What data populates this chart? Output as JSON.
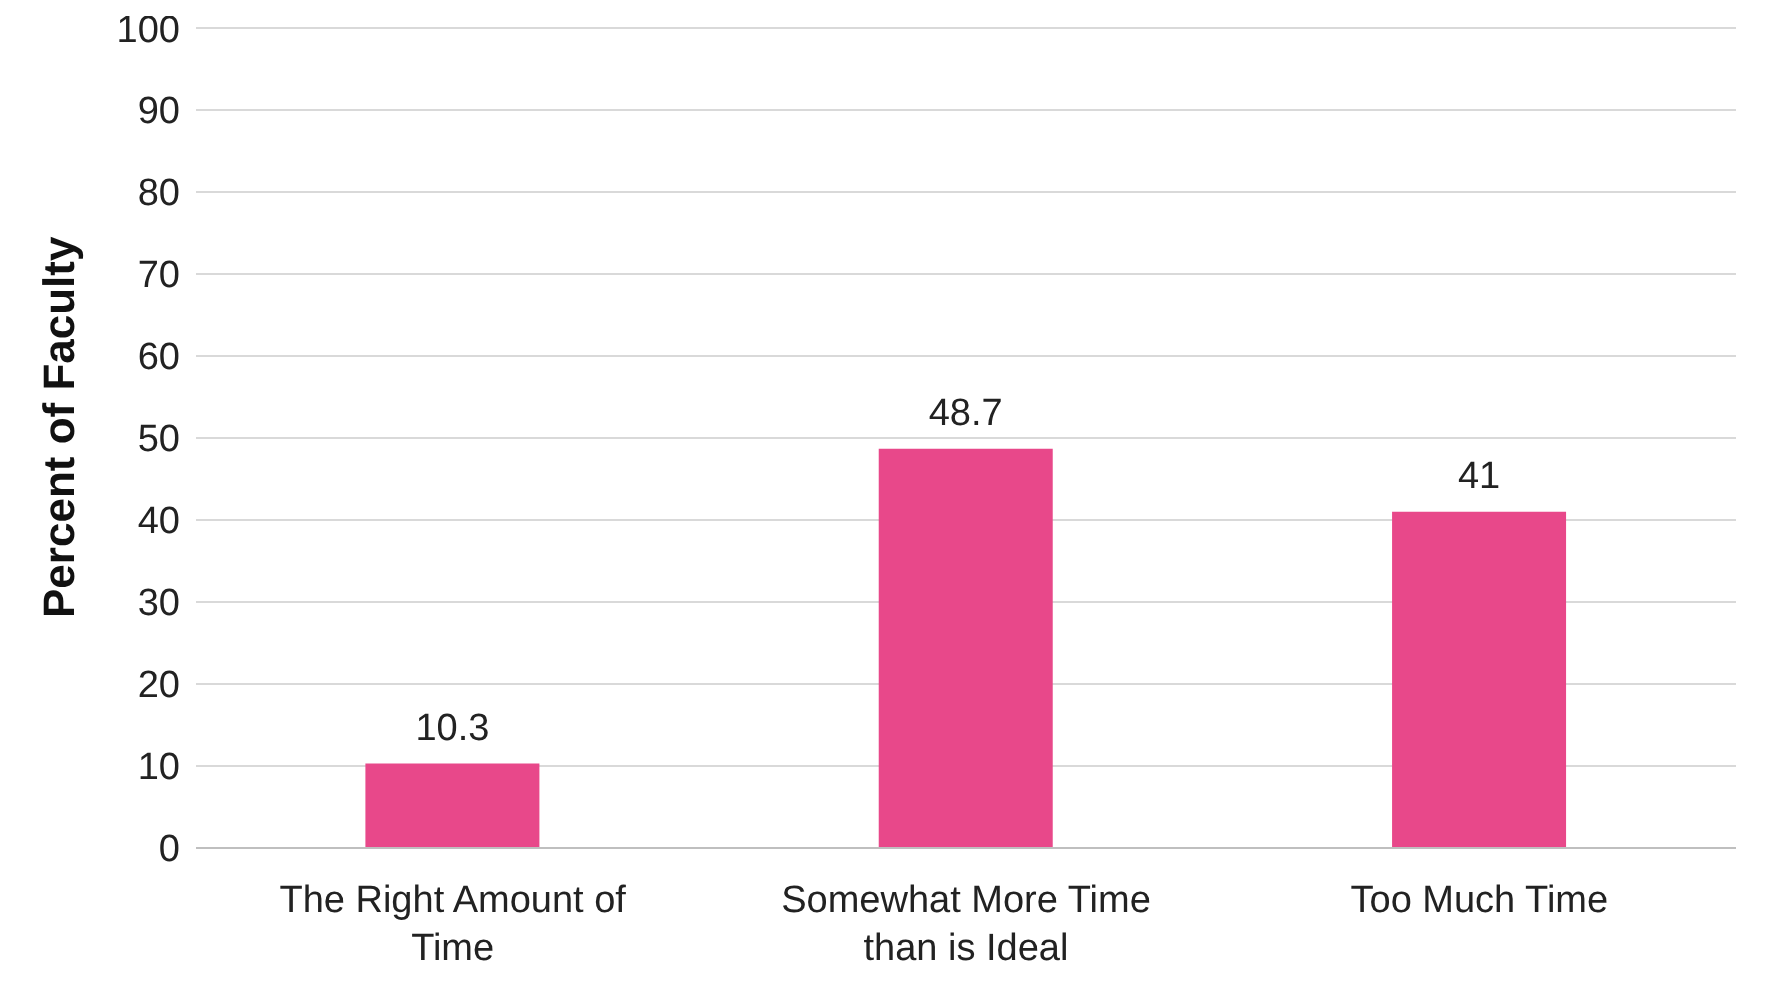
{
  "chart_data": {
    "type": "bar",
    "ylabel": "Percent of Faculty",
    "categories": [
      "The Right Amount of Time",
      "Somewhat More Time than is Ideal",
      "Too Much Time"
    ],
    "values": [
      10.3,
      48.7,
      41
    ],
    "color": "#e8488a",
    "ylim": [
      0,
      100
    ],
    "yticks": [
      0,
      10,
      20,
      30,
      40,
      50,
      60,
      70,
      80,
      90,
      100
    ],
    "grid": "y",
    "data_labels": true
  }
}
